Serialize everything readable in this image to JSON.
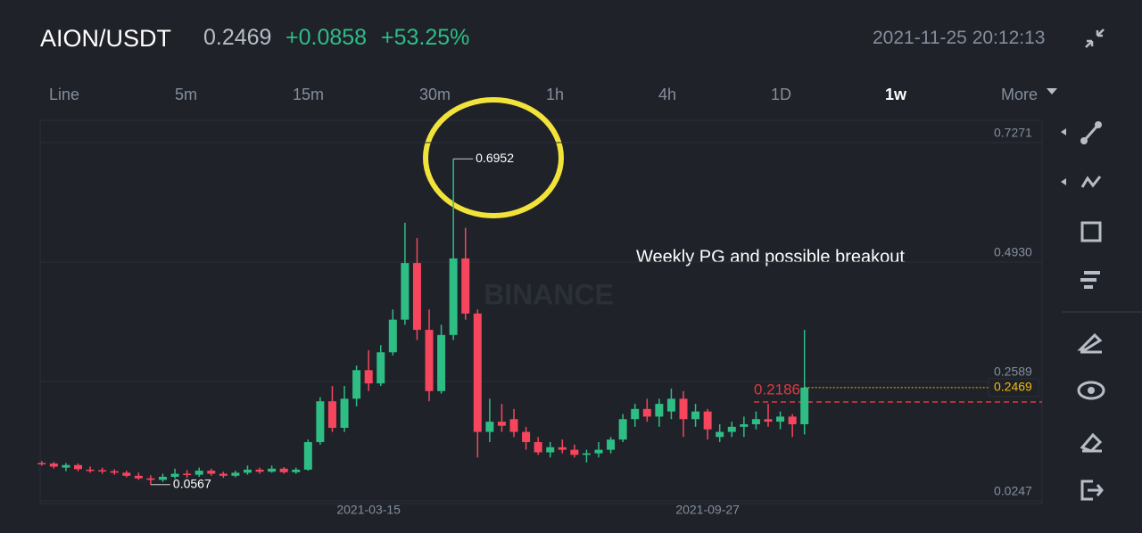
{
  "header": {
    "pair": "AION/USDT",
    "price": "0.2469",
    "change": "+0.0858",
    "change_pct": "+53.25%",
    "timestamp": "2021-11-25 20:12:13"
  },
  "tabs": [
    "Line",
    "5m",
    "15m",
    "30m",
    "1h",
    "4h",
    "1D",
    "1w",
    "More"
  ],
  "active_tab": "1w",
  "watermark": "BINANCE",
  "chart_data": {
    "type": "candlestick",
    "annotation": "Weekly PG and possible breakout",
    "categories": [
      null,
      null,
      null,
      null,
      null,
      null,
      null,
      null,
      null,
      null,
      null,
      null,
      null,
      null,
      null,
      null,
      null,
      null,
      null,
      null,
      null,
      null,
      null,
      null,
      null,
      null,
      null,
      "2021-03-15",
      null,
      null,
      null,
      null,
      null,
      null,
      null,
      null,
      null,
      null,
      null,
      null,
      null,
      null,
      null,
      null,
      null,
      null,
      null,
      null,
      null,
      null,
      null,
      null,
      null,
      null,
      null,
      "2021-09-27",
      null,
      null,
      null,
      null,
      null,
      null,
      null,
      null
    ],
    "open": [
      0.099,
      0.098,
      0.09,
      0.095,
      0.086,
      0.085,
      0.083,
      0.08,
      0.074,
      0.069,
      0.066,
      0.072,
      0.078,
      0.076,
      0.084,
      0.078,
      0.074,
      0.08,
      0.086,
      0.082,
      0.088,
      0.081,
      0.086,
      0.14,
      0.22,
      0.168,
      0.225,
      0.281,
      0.255,
      0.316,
      0.38,
      0.491,
      0.36,
      0.24,
      0.35,
      0.5,
      0.392,
      0.16,
      0.18,
      0.185,
      0.16,
      0.14,
      0.12,
      0.13,
      0.125,
      0.115,
      0.118,
      0.125,
      0.145,
      0.185,
      0.205,
      0.19,
      0.2,
      0.225,
      0.185,
      0.2,
      0.15,
      0.16,
      0.17,
      0.175,
      0.185,
      0.18,
      0.19,
      0.175
    ],
    "high": [
      0.103,
      0.101,
      0.099,
      0.098,
      0.092,
      0.09,
      0.087,
      0.084,
      0.08,
      0.075,
      0.078,
      0.088,
      0.085,
      0.09,
      0.088,
      0.082,
      0.084,
      0.094,
      0.09,
      0.094,
      0.091,
      0.09,
      0.145,
      0.228,
      0.25,
      0.25,
      0.29,
      0.32,
      0.33,
      0.4,
      0.57,
      0.54,
      0.4,
      0.37,
      0.6952,
      0.56,
      0.4,
      0.225,
      0.215,
      0.205,
      0.17,
      0.15,
      0.14,
      0.145,
      0.135,
      0.125,
      0.14,
      0.15,
      0.195,
      0.215,
      0.225,
      0.225,
      0.245,
      0.24,
      0.215,
      0.205,
      0.175,
      0.18,
      0.19,
      0.2,
      0.215,
      0.2,
      0.195,
      0.36
    ],
    "low": [
      0.094,
      0.088,
      0.083,
      0.083,
      0.08,
      0.078,
      0.076,
      0.071,
      0.066,
      0.0567,
      0.062,
      0.068,
      0.07,
      0.072,
      0.074,
      0.07,
      0.071,
      0.076,
      0.078,
      0.08,
      0.078,
      0.078,
      0.084,
      0.135,
      0.16,
      0.16,
      0.21,
      0.24,
      0.25,
      0.31,
      0.37,
      0.34,
      0.22,
      0.235,
      0.34,
      0.38,
      0.11,
      0.14,
      0.16,
      0.15,
      0.125,
      0.115,
      0.11,
      0.118,
      0.11,
      0.1,
      0.11,
      0.118,
      0.14,
      0.17,
      0.18,
      0.17,
      0.185,
      0.15,
      0.17,
      0.145,
      0.14,
      0.15,
      0.15,
      0.165,
      0.17,
      0.165,
      0.15,
      0.155
    ],
    "close": [
      0.097,
      0.092,
      0.095,
      0.087,
      0.084,
      0.083,
      0.08,
      0.074,
      0.069,
      0.066,
      0.072,
      0.078,
      0.076,
      0.084,
      0.078,
      0.074,
      0.08,
      0.086,
      0.082,
      0.088,
      0.081,
      0.086,
      0.14,
      0.22,
      0.168,
      0.225,
      0.281,
      0.255,
      0.316,
      0.38,
      0.491,
      0.36,
      0.24,
      0.35,
      0.5,
      0.392,
      0.16,
      0.18,
      0.172,
      0.16,
      0.14,
      0.12,
      0.13,
      0.125,
      0.115,
      0.118,
      0.125,
      0.145,
      0.185,
      0.205,
      0.19,
      0.215,
      0.225,
      0.185,
      0.2,
      0.165,
      0.16,
      0.17,
      0.175,
      0.185,
      0.18,
      0.19,
      0.175,
      0.2469
    ],
    "up_color": "#2ebd85",
    "down_color": "#f6465d",
    "ylim": [
      0.0195,
      0.7707
    ],
    "yticks": [
      0.7271,
      {
        "value": 0.493,
        "label": "0.4930"
      },
      0.2589,
      0.0247
    ],
    "grid": true,
    "alert_line": 0.2186,
    "alert_color": "#e0393e",
    "last_price_color": "#f0b90b"
  }
}
